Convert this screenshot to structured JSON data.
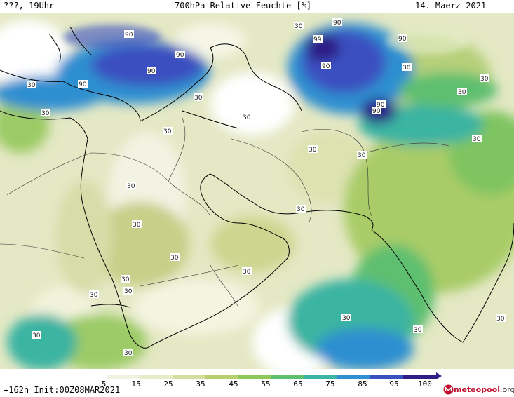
{
  "header": {
    "left": "???, 19Uhr",
    "title": "700hPa Relative Feuchte [%]",
    "date": "14. Maerz 2021"
  },
  "footer": {
    "run": "+162h Init:00Z08MAR2021",
    "brand_a": "meteo",
    "brand_b": "pool",
    "brand_c": ".org"
  },
  "colorbar": {
    "ticks": [
      "5",
      "15",
      "25",
      "35",
      "45",
      "55",
      "65",
      "75",
      "85",
      "95",
      "100"
    ],
    "colors": [
      "#ffffff",
      "#f1f1e4",
      "#e9ebc8",
      "#d5dd9c",
      "#b7cf6f",
      "#8ec85a",
      "#5fbf70",
      "#3bb4a2",
      "#2f8fd0",
      "#3a4fc0",
      "#2e1e86"
    ]
  },
  "contour_labels": [
    "90",
    "90",
    "90",
    "90",
    "90",
    "99",
    "90",
    "90",
    "90",
    "90",
    "30",
    "30",
    "30",
    "30",
    "30",
    "30",
    "30",
    "30",
    "30",
    "30",
    "30",
    "30",
    "30",
    "30",
    "30",
    "30",
    "30",
    "30",
    "30",
    "30",
    "30",
    "30",
    "30",
    "30",
    "30"
  ]
}
